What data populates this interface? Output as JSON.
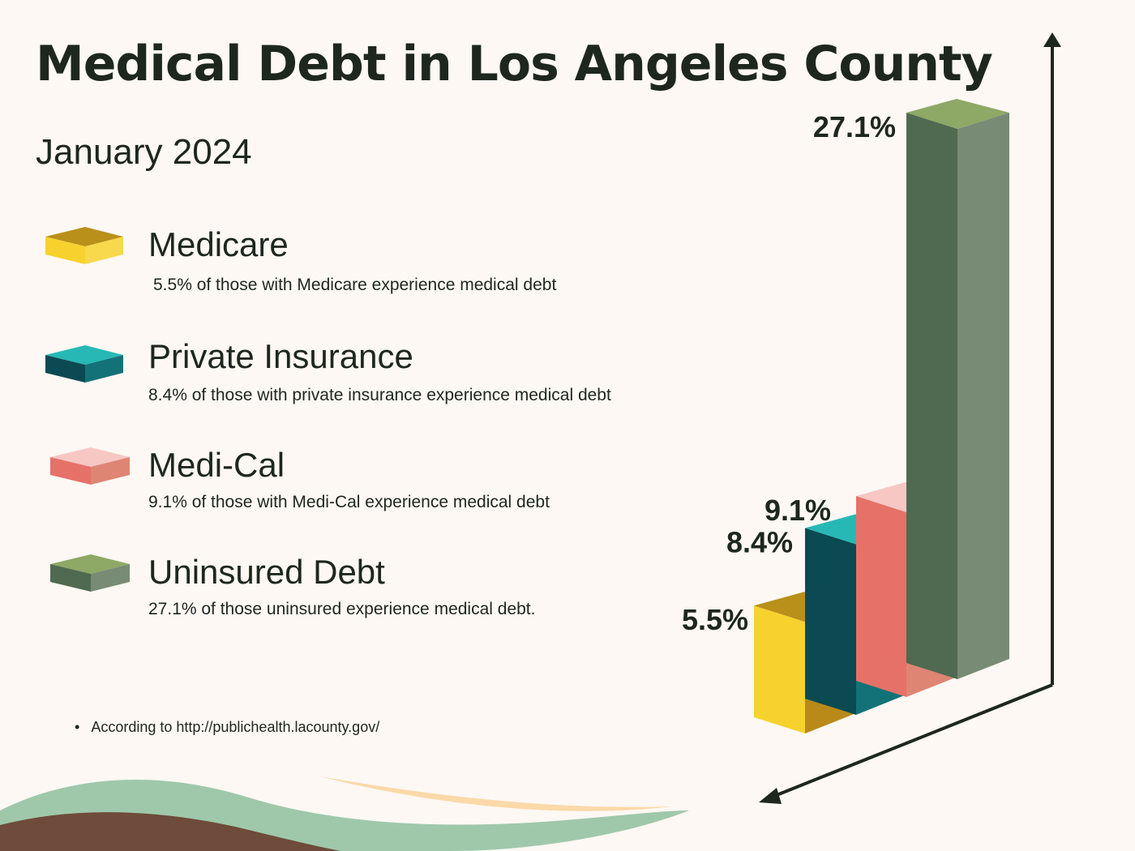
{
  "title": "Medical Debt in Los Angeles County",
  "subtitle": "January 2024",
  "legend": [
    {
      "label": "Medicare",
      "desc": "5.5% of those with Medicare experience medical debt"
    },
    {
      "label": "Private Insurance",
      "desc": "8.4% of those with private insurance experience medical debt"
    },
    {
      "label": "Medi-Cal",
      "desc": "9.1% of those with Medi-Cal experience medical debt"
    },
    {
      "label": "Uninsured Debt",
      "desc": "27.1% of those uninsured experience medical debt."
    }
  ],
  "source": "According to http://publichealth.lacounty.gov/",
  "colors": {
    "medicare": {
      "top": "#b8901a",
      "front": "#f7d22e",
      "side": "#b98a18"
    },
    "private": {
      "top": "#27b8b6",
      "front": "#0b4a52",
      "side": "#137278"
    },
    "medical": {
      "top": "#f7c7c4",
      "front": "#e67169",
      "side": "#de8574"
    },
    "uninsured": {
      "top": "#8ea866",
      "front": "#4f6a50",
      "side": "#788b74"
    }
  },
  "chart_data": {
    "type": "bar",
    "title": "Medical Debt in Los Angeles County",
    "categories": [
      "Medicare",
      "Private Insurance",
      "Medi-Cal",
      "Uninsured Debt"
    ],
    "values": [
      5.5,
      8.4,
      9.1,
      27.1
    ],
    "labels": [
      "5.5%",
      "8.4%",
      "9.1%",
      "27.1%"
    ],
    "unit": "%",
    "style": "3d-bar"
  }
}
